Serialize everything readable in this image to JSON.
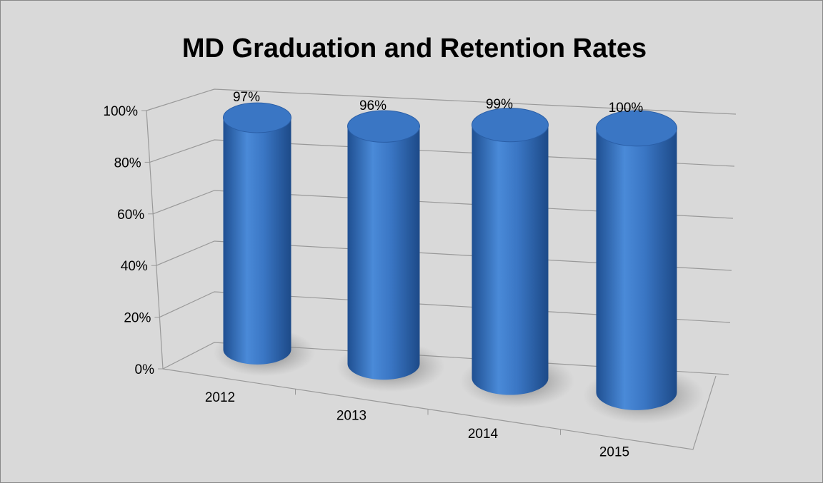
{
  "chart_data": {
    "type": "cylinder",
    "title": "MD Graduation and Retention Rates",
    "categories": [
      "2012",
      "2013",
      "2014",
      "2015"
    ],
    "values": [
      97,
      96,
      99,
      100
    ],
    "value_labels": [
      "97%",
      "96%",
      "99%",
      "100%"
    ],
    "color": "#3a76c4",
    "ylim": [
      0,
      100
    ],
    "yticks": [
      {
        "value": 0,
        "label": "0%"
      },
      {
        "value": 20,
        "label": "20%"
      },
      {
        "value": 40,
        "label": "40%"
      },
      {
        "value": 60,
        "label": "60%"
      },
      {
        "value": 80,
        "label": "80%"
      },
      {
        "value": 100,
        "label": "100%"
      }
    ],
    "grid": true
  }
}
